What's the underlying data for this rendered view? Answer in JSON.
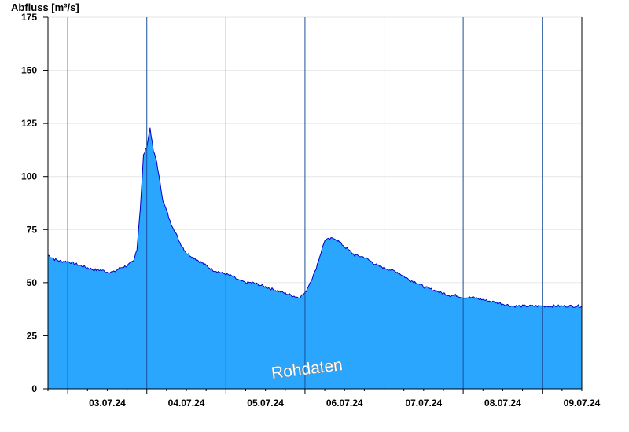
{
  "chart_data": {
    "type": "area",
    "ylabel": "Abfluss [m³/s]",
    "ylim": [
      0,
      175
    ],
    "yticks": [
      0,
      25,
      50,
      75,
      100,
      125,
      150,
      175
    ],
    "xlim": [
      "2024-07-02 18:00",
      "2024-07-09 12:00"
    ],
    "day_boundaries": [
      "2024-07-03 00:00",
      "2024-07-04 00:00",
      "2024-07-05 00:00",
      "2024-07-06 00:00",
      "2024-07-07 00:00",
      "2024-07-08 00:00",
      "2024-07-09 00:00"
    ],
    "xtick_labels": [
      "03.07.24",
      "04.07.24",
      "05.07.24",
      "06.07.24",
      "07.07.24",
      "08.07.24",
      "09.07.24"
    ],
    "grid": true,
    "watermark": "Rohdaten",
    "colors": {
      "fill": "#2aa6ff",
      "line": "#0000c8",
      "day_line": "#1a4f99",
      "grid": "#e6e6e6"
    },
    "series": [
      {
        "x": [
          "2024-07-02 18:00",
          "2024-07-02 20:00",
          "2024-07-02 22:00",
          "2024-07-03 00:00",
          "2024-07-03 02:00",
          "2024-07-03 04:00",
          "2024-07-03 06:00",
          "2024-07-03 08:00",
          "2024-07-03 10:00",
          "2024-07-03 12:00",
          "2024-07-03 14:00",
          "2024-07-03 16:00",
          "2024-07-03 18:00",
          "2024-07-03 20:00",
          "2024-07-03 21:00",
          "2024-07-03 22:00",
          "2024-07-03 23:00",
          "2024-07-04 00:00",
          "2024-07-04 01:00",
          "2024-07-04 02:00",
          "2024-07-04 03:00",
          "2024-07-04 04:00",
          "2024-07-04 05:00",
          "2024-07-04 06:00",
          "2024-07-04 07:00",
          "2024-07-04 08:00",
          "2024-07-04 10:00",
          "2024-07-04 12:00",
          "2024-07-04 14:00",
          "2024-07-04 16:00",
          "2024-07-04 18:00",
          "2024-07-04 20:00",
          "2024-07-04 22:00",
          "2024-07-05 00:00",
          "2024-07-05 02:00",
          "2024-07-05 04:00",
          "2024-07-05 06:00",
          "2024-07-05 08:00",
          "2024-07-05 10:00",
          "2024-07-05 12:00",
          "2024-07-05 14:00",
          "2024-07-05 16:00",
          "2024-07-05 18:00",
          "2024-07-05 20:00",
          "2024-07-05 22:00",
          "2024-07-06 00:00",
          "2024-07-06 03:00",
          "2024-07-06 06:00",
          "2024-07-06 09:00",
          "2024-07-06 12:00",
          "2024-07-06 15:00",
          "2024-07-06 18:00",
          "2024-07-06 20:00",
          "2024-07-06 22:00",
          "2024-07-07 00:00",
          "2024-07-07 02:00",
          "2024-07-07 04:00",
          "2024-07-07 06:00",
          "2024-07-07 08:00",
          "2024-07-07 10:00",
          "2024-07-07 12:00",
          "2024-07-07 14:00",
          "2024-07-07 16:00",
          "2024-07-07 18:00",
          "2024-07-07 20:00",
          "2024-07-07 22:00",
          "2024-07-08 00:00",
          "2024-07-08 03:00",
          "2024-07-08 06:00",
          "2024-07-08 09:00",
          "2024-07-08 12:00",
          "2024-07-08 15:00",
          "2024-07-08 18:00",
          "2024-07-08 21:00",
          "2024-07-09 00:00",
          "2024-07-09 03:00",
          "2024-07-09 06:00",
          "2024-07-09 09:00",
          "2024-07-09 12:00"
        ],
        "values": [
          63,
          61,
          60,
          60,
          59,
          58,
          57,
          56,
          56,
          55,
          55,
          57,
          58,
          60,
          66,
          85,
          110,
          114,
          123,
          112,
          107,
          97,
          88,
          84,
          79,
          76,
          69,
          64,
          62,
          60,
          58,
          56,
          55,
          54,
          53,
          51,
          50,
          50,
          49,
          48,
          47,
          46,
          45,
          44,
          43,
          45,
          55,
          70,
          71,
          67,
          63,
          62,
          60,
          58,
          57,
          56,
          55,
          53,
          51,
          50,
          48,
          47,
          46,
          45,
          44,
          44,
          43,
          43,
          42,
          41,
          40,
          39,
          39,
          39,
          39,
          39,
          39,
          39,
          39
        ]
      }
    ]
  }
}
